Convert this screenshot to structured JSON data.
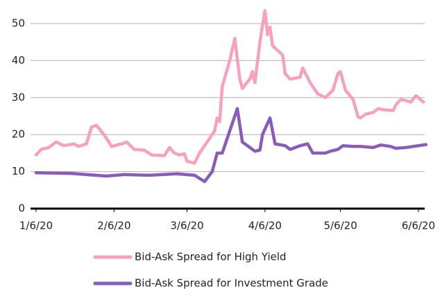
{
  "chart_data": {
    "type": "line",
    "xlim": [
      "1/6/20",
      "6/6/20"
    ],
    "xticks": [
      "1/6/20",
      "2/6/20",
      "3/6/20",
      "4/6/20",
      "5/6/20",
      "6/6/20"
    ],
    "ylim": [
      0,
      50
    ],
    "yticks": [
      0,
      10,
      20,
      30,
      40,
      50
    ],
    "grid": true,
    "legend": "bottom",
    "series": [
      {
        "name": "Bid-Ask Spread for High Yield",
        "color": "#f7a1bc",
        "x": [
          "1/6/20",
          "1/8/20",
          "1/11/20",
          "1/14/20",
          "1/17/20",
          "1/21/20",
          "1/23/20",
          "1/26/20",
          "1/28/20",
          "1/30/20",
          "2/2/20",
          "2/5/20",
          "2/9/20",
          "2/11/20",
          "2/14/20",
          "2/18/20",
          "2/21/20",
          "2/26/20",
          "2/28/20",
          "3/1/20",
          "3/3/20",
          "3/5/20",
          "3/6/20",
          "3/9/20",
          "3/11/20",
          "3/14/20",
          "3/17/20",
          "3/18/20",
          "3/19/20",
          "3/20/20",
          "3/23/20",
          "3/25/20",
          "3/27/20",
          "3/28/20",
          "3/31/20",
          "4/1/20",
          "4/2/20",
          "4/4/20",
          "4/5/20",
          "4/6/20",
          "4/7/20",
          "4/8/20",
          "4/9/20",
          "4/13/20",
          "4/14/20",
          "4/16/20",
          "4/20/20",
          "4/21/20",
          "4/24/20",
          "4/27/20",
          "4/30/20",
          "5/3/20",
          "5/5/20",
          "5/6/20",
          "5/8/20",
          "5/11/20",
          "5/13/20",
          "5/14/20",
          "5/16/20",
          "5/19/20",
          "5/21/20",
          "5/23/20",
          "5/27/20",
          "5/28/20",
          "5/30/20",
          "6/1/20",
          "6/3/20",
          "6/5/20",
          "6/8/20"
        ],
        "values": [
          14.5,
          16,
          16.5,
          18,
          17,
          17.5,
          16.8,
          17.5,
          22,
          22.5,
          20,
          16.8,
          17.5,
          18,
          16,
          15.8,
          14.5,
          14.3,
          16.5,
          15,
          14.5,
          14.8,
          12.8,
          12.3,
          15,
          18,
          21,
          24.5,
          23.5,
          33,
          40,
          46,
          35,
          32.5,
          35,
          37,
          34,
          45,
          49.5,
          53.5,
          47,
          49,
          44,
          41.5,
          36.5,
          35,
          35.5,
          38,
          34,
          31,
          30,
          32,
          36.5,
          37,
          32,
          29.5,
          24.8,
          24.5,
          25.5,
          26,
          27,
          26.7,
          26.5,
          28,
          29.5,
          29.2,
          28.8,
          30.5,
          28.8
        ]
      },
      {
        "name": "Bid-Ask Spread for Investment Grade",
        "color": "#8a5cba",
        "x": [
          "1/6/20",
          "1/20/20",
          "2/3/20",
          "2/10/20",
          "2/20/20",
          "3/2/20",
          "3/9/20",
          "3/13/20",
          "3/16/20",
          "3/18/20",
          "3/20/20",
          "3/23/20",
          "3/26/20",
          "3/28/20",
          "4/2/20",
          "4/4/20",
          "4/5/20",
          "4/8/20",
          "4/10/20",
          "4/14/20",
          "4/16/20",
          "4/20/20",
          "4/23/20",
          "4/25/20",
          "4/30/20",
          "5/2/20",
          "5/5/20",
          "5/7/20",
          "5/11/20",
          "5/14/20",
          "5/19/20",
          "5/22/20",
          "5/26/20",
          "5/28/20",
          "6/1/20",
          "6/6/20",
          "6/9/20"
        ],
        "values": [
          9.7,
          9.5,
          8.8,
          9.2,
          9.0,
          9.4,
          9.0,
          7.3,
          10,
          15,
          15,
          21,
          27,
          18,
          15.5,
          15.8,
          20,
          24.5,
          17.5,
          17,
          16,
          17,
          17.5,
          15,
          15,
          15.5,
          16,
          17,
          16.8,
          16.8,
          16.5,
          17.2,
          16.8,
          16.3,
          16.5,
          17,
          17.3
        ]
      }
    ]
  }
}
